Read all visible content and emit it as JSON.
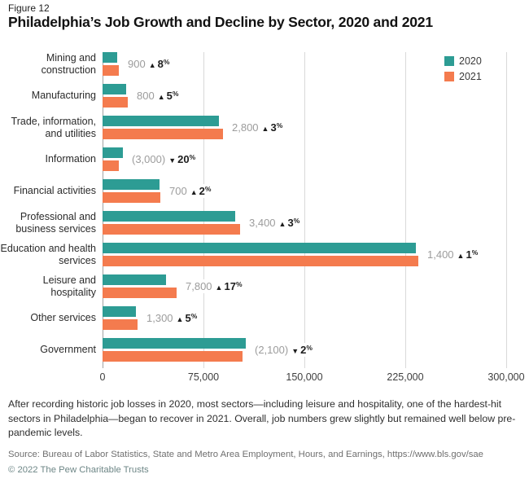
{
  "figure_label": "Figure 12",
  "title": "Philadelphia’s Job Growth and Decline by Sector, 2020 and 2021",
  "note": "After recording historic job losses in 2020, most sectors—including leisure and hospitality, one of the hardest-hit sectors in Philadelphia—began to recover in 2021. Overall, job numbers grew slightly but remained well below pre-pandemic levels.",
  "source": "Source: Bureau of Labor Statistics, State and Metro Area Employment, Hours, and Earnings, https://www.bls.gov/sae",
  "copyright": "© 2022 The Pew Charitable Trusts",
  "colors": {
    "teal_2020": "#2d9c94",
    "orange_2021": "#f47b4e",
    "gridline": "#d9d9d9",
    "axis_line": "#a3a3a3",
    "annotation_number_gray": "#9c9c9c",
    "annotation_change_dark": "#1c1c1c"
  },
  "chart_data": {
    "type": "bar",
    "orientation": "horizontal",
    "title": "Philadelphia’s Job Growth and Decline by Sector, 2020 and 2021",
    "xlabel": "",
    "ylabel": "",
    "xlim": [
      0,
      300000
    ],
    "x_ticks": [
      "0",
      "75,000",
      "150,000",
      "225,000",
      "300,000"
    ],
    "grid": true,
    "legend_position": "top-right",
    "categories": [
      "Mining and construction",
      "Manufacturing",
      "Trade, information, and utilities",
      "Information",
      "Financial activities",
      "Professional and business services",
      "Education and health services",
      "Leisure and hospitality",
      "Other services",
      "Government"
    ],
    "series": [
      {
        "name": "2020",
        "color": "#2d9c94",
        "values": [
          11000,
          17800,
          86500,
          15000,
          42300,
          98600,
          233000,
          47200,
          24700,
          106300
        ]
      },
      {
        "name": "2021",
        "color": "#f47b4e",
        "values": [
          11900,
          18600,
          89300,
          12000,
          43000,
          102000,
          234400,
          55000,
          26000,
          104200
        ]
      }
    ],
    "annotations": [
      {
        "value": "900",
        "direction": "up",
        "pct": "8"
      },
      {
        "value": "800",
        "direction": "up",
        "pct": "5"
      },
      {
        "value": "2,800",
        "direction": "up",
        "pct": "3"
      },
      {
        "value": "(3,000)",
        "direction": "down",
        "pct": "20"
      },
      {
        "value": "700",
        "direction": "up",
        "pct": "2"
      },
      {
        "value": "3,400",
        "direction": "up",
        "pct": "3"
      },
      {
        "value": "1,400",
        "direction": "up",
        "pct": "1"
      },
      {
        "value": "7,800",
        "direction": "up",
        "pct": "17"
      },
      {
        "value": "1,300",
        "direction": "up",
        "pct": "5"
      },
      {
        "value": "(2,100)",
        "direction": "down",
        "pct": "2"
      }
    ]
  }
}
